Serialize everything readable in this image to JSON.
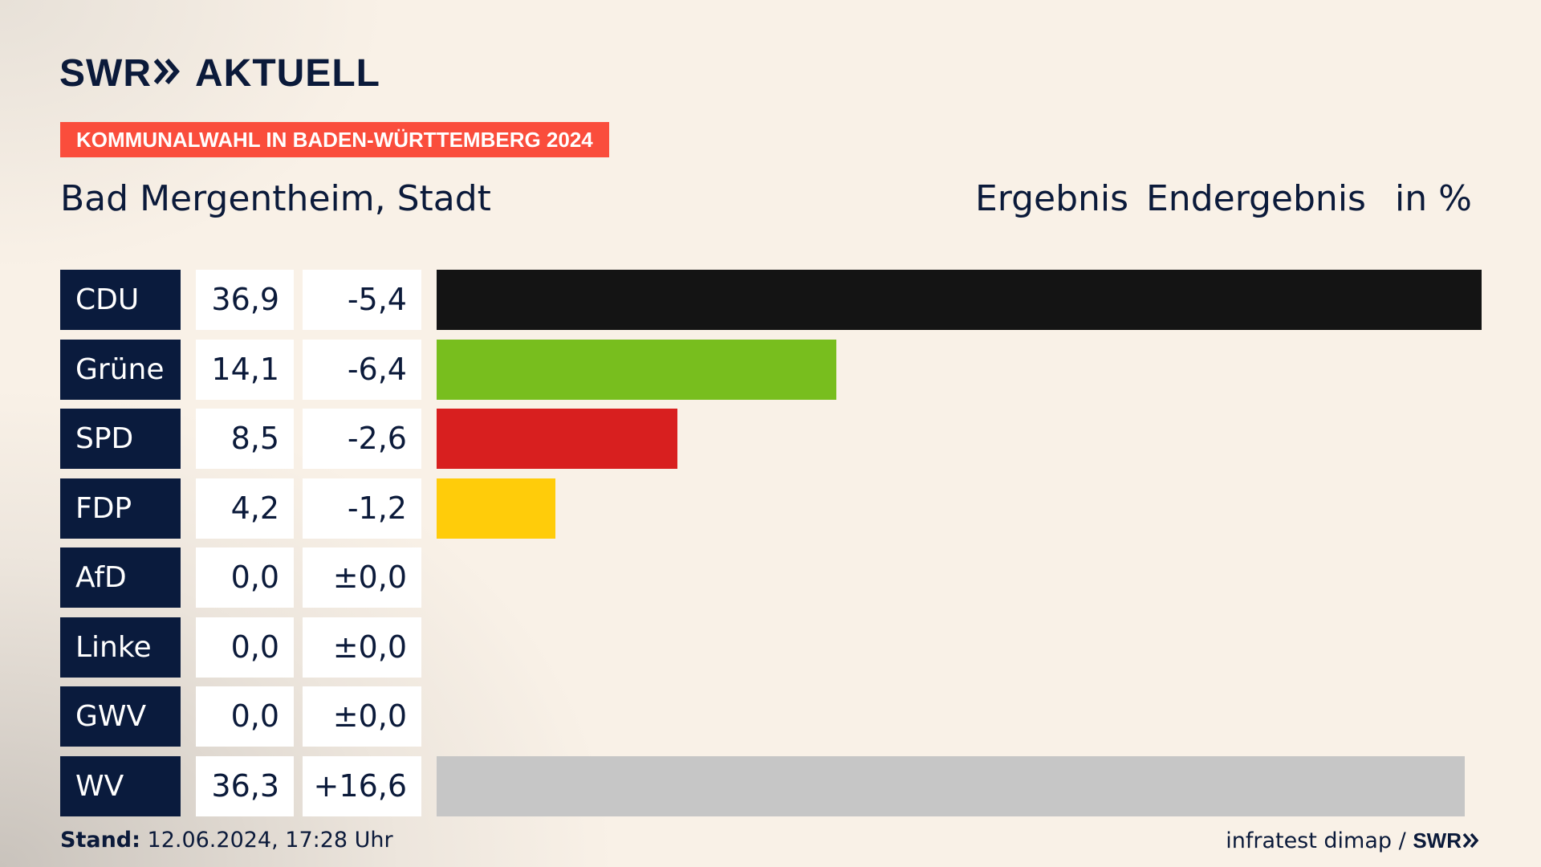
{
  "brand": {
    "swr": "SWR",
    "chevron_icon": "double-chevron-right-icon",
    "aktuell": "AKTUELL"
  },
  "tag": "KOMMUNALWAHL IN BADEN-WÜRTTEMBERG 2024",
  "place": "Bad Mergentheim, Stadt",
  "header": {
    "ergebnis": "Ergebnis",
    "endergebnis": "Endergebnis",
    "unit": "in %"
  },
  "footer": {
    "stand_label": "Stand:",
    "stand_value": "12.06.2024, 17:28 Uhr",
    "source": "infratest dimap /",
    "swr": "SWR"
  },
  "chart_data": {
    "type": "bar",
    "orientation": "horizontal",
    "ylabel": "in %",
    "xlim": [
      0,
      36.9
    ],
    "categories": [
      "CDU",
      "Grüne",
      "SPD",
      "FDP",
      "AfD",
      "Linke",
      "GWV",
      "WV"
    ],
    "values": [
      36.9,
      14.1,
      8.5,
      4.2,
      0.0,
      0.0,
      0.0,
      36.3
    ],
    "labels": [
      "36,9",
      "14,1",
      "8,5",
      "4,2",
      "0,0",
      "0,0",
      "0,0",
      "36,3"
    ],
    "diffs": [
      "-5,4",
      "-6,4",
      "-2,6",
      "-1,2",
      "±0,0",
      "±0,0",
      "±0,0",
      "+16,6"
    ],
    "colors": [
      "#141414",
      "#78be1e",
      "#d81f1f",
      "#ffcc0a",
      "#009ee0",
      "#be3075",
      "#5b6b8c",
      "#c6c6c6"
    ]
  }
}
